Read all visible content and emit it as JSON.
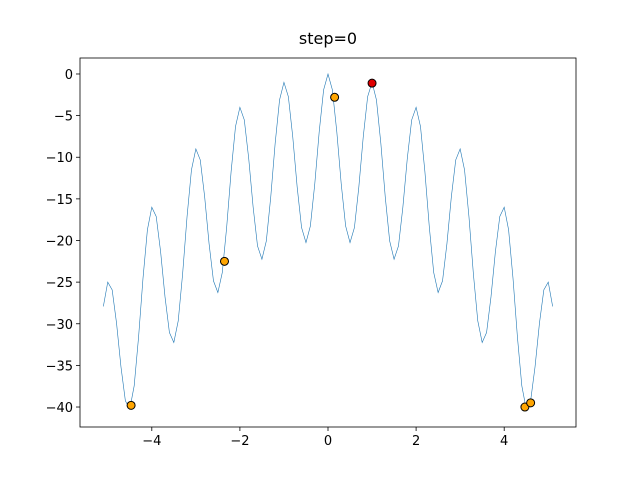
{
  "chart_data": {
    "type": "line",
    "title": "step=0",
    "xlim": [
      -5.63,
      5.63
    ],
    "ylim": [
      -42.4,
      1.92
    ],
    "xticks": [
      {
        "value": -4,
        "label": "−4"
      },
      {
        "value": -2,
        "label": "−2"
      },
      0,
      2,
      4
    ],
    "yticks": [
      0,
      {
        "value": -5,
        "label": "−5"
      },
      {
        "value": -10,
        "label": "−10"
      },
      {
        "value": -15,
        "label": "−15"
      },
      {
        "value": -20,
        "label": "−20"
      },
      {
        "value": -25,
        "label": "−25"
      },
      {
        "value": -30,
        "label": "−30"
      },
      {
        "value": -35,
        "label": "−35"
      },
      {
        "value": -40,
        "label": "−40"
      }
    ],
    "series": [
      {
        "type": "line",
        "color": "#1f77b4",
        "x": [
          -5.1,
          -5.0,
          -4.9,
          -4.8,
          -4.7,
          -4.6,
          -4.5,
          -4.4,
          -4.3,
          -4.2,
          -4.1,
          -4.0,
          -3.9,
          -3.8,
          -3.7,
          -3.6,
          -3.5,
          -3.4,
          -3.3,
          -3.2,
          -3.1,
          -3.0,
          -2.9,
          -2.8,
          -2.7,
          -2.6,
          -2.5,
          -2.4,
          -2.3,
          -2.2,
          -2.1,
          -2.0,
          -1.9,
          -1.8,
          -1.7,
          -1.6,
          -1.5,
          -1.4,
          -1.3,
          -1.2,
          -1.1,
          -1.0,
          -0.9,
          -0.8,
          -0.7,
          -0.6,
          -0.5,
          -0.4,
          -0.3,
          -0.2,
          -0.1,
          0,
          0.1,
          0.2,
          0.3,
          0.4,
          0.5,
          0.6,
          0.7,
          0.8,
          0.9,
          1.0,
          1.1,
          1.2,
          1.3,
          1.4,
          1.5,
          1.6,
          1.7,
          1.8,
          1.9,
          2.0,
          2.1,
          2.2,
          2.3,
          2.4,
          2.5,
          2.6,
          2.7,
          2.8,
          2.9,
          3.0,
          3.1,
          3.2,
          3.3,
          3.4,
          3.5,
          3.6,
          3.7,
          3.8,
          3.9,
          4.0,
          4.1,
          4.2,
          4.3,
          4.4,
          4.5,
          4.6,
          4.7,
          4.8,
          4.9,
          5.0,
          5.1
        ],
        "values": [
          -27.92,
          -25,
          -25.92,
          -29.95,
          -35.18,
          -39.25,
          -40.25,
          -37.45,
          -31.58,
          -24.55,
          -18.72,
          -16,
          -17.12,
          -21.35,
          -26.78,
          -31.05,
          -32.25,
          -29.65,
          -23.98,
          -17.15,
          -11.52,
          -9,
          -10.32,
          -14.75,
          -20.38,
          -24.85,
          -26.25,
          -23.85,
          -18.38,
          -11.75,
          -6.32,
          -4,
          -5.52,
          -10.15,
          -15.98,
          -20.65,
          -22.25,
          -20.05,
          -14.78,
          -8.35,
          -3.12,
          -1,
          -2.72,
          -7.55,
          -13.58,
          -18.45,
          -20.25,
          -18.25,
          -13.18,
          -6.95,
          -1.92,
          0,
          -1.92,
          -6.95,
          -13.18,
          -18.25,
          -20.25,
          -18.45,
          -13.58,
          -7.55,
          -2.72,
          -1,
          -3.12,
          -8.35,
          -14.78,
          -20.05,
          -22.25,
          -20.65,
          -15.98,
          -10.15,
          -5.52,
          -4,
          -6.32,
          -11.75,
          -18.38,
          -23.85,
          -26.25,
          -24.85,
          -20.38,
          -14.75,
          -10.32,
          -9,
          -11.52,
          -17.15,
          -23.98,
          -29.65,
          -32.25,
          -31.05,
          -26.78,
          -21.35,
          -17.12,
          -16,
          -18.72,
          -24.55,
          -31.58,
          -37.45,
          -40.25,
          -39.25,
          -35.18,
          -29.95,
          -25.92,
          -25,
          -27.92
        ]
      },
      {
        "type": "scatter",
        "color": "#ffa500",
        "x": [
          -4.47,
          -2.35,
          0.15,
          4.47,
          4.6
        ],
        "values": [
          -39.8,
          -22.5,
          -2.8,
          -40.0,
          -39.5
        ]
      },
      {
        "type": "scatter",
        "color": "#e00000",
        "x": [
          1.0
        ],
        "values": [
          -1.1
        ]
      }
    ]
  }
}
